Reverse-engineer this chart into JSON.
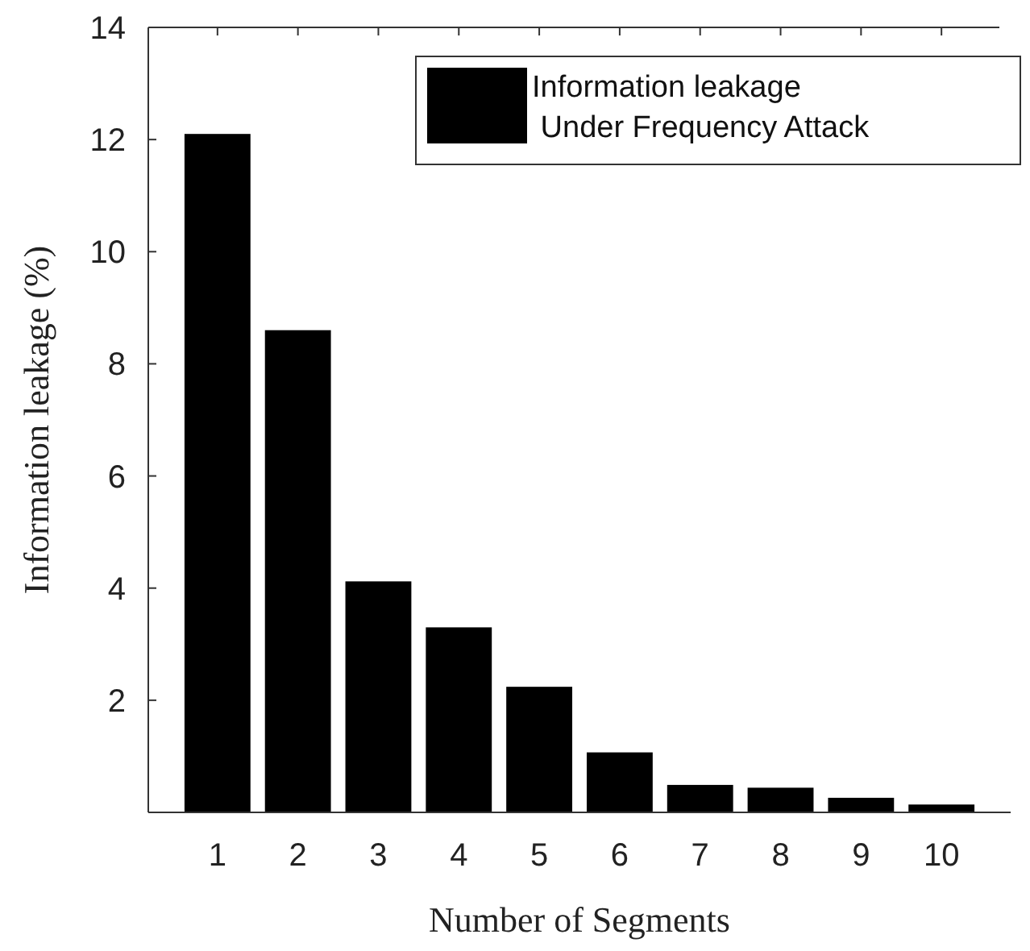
{
  "chart_data": {
    "type": "bar",
    "xlabel": "Number of Segments",
    "ylabel": "Information leakage (%)",
    "categories": [
      "1",
      "2",
      "3",
      "4",
      "5",
      "6",
      "7",
      "8",
      "9",
      "10"
    ],
    "series": [
      {
        "name": "Information leakage\n Under Frequency Attack",
        "color": "#000000",
        "values": [
          12.1,
          8.6,
          4.12,
          3.3,
          2.24,
          1.07,
          0.49,
          0.44,
          0.26,
          0.14
        ]
      }
    ],
    "ylim": [
      0,
      14
    ],
    "yticks": [
      2,
      4,
      6,
      8,
      10,
      12,
      14
    ],
    "legend": "top right",
    "grid": false
  }
}
